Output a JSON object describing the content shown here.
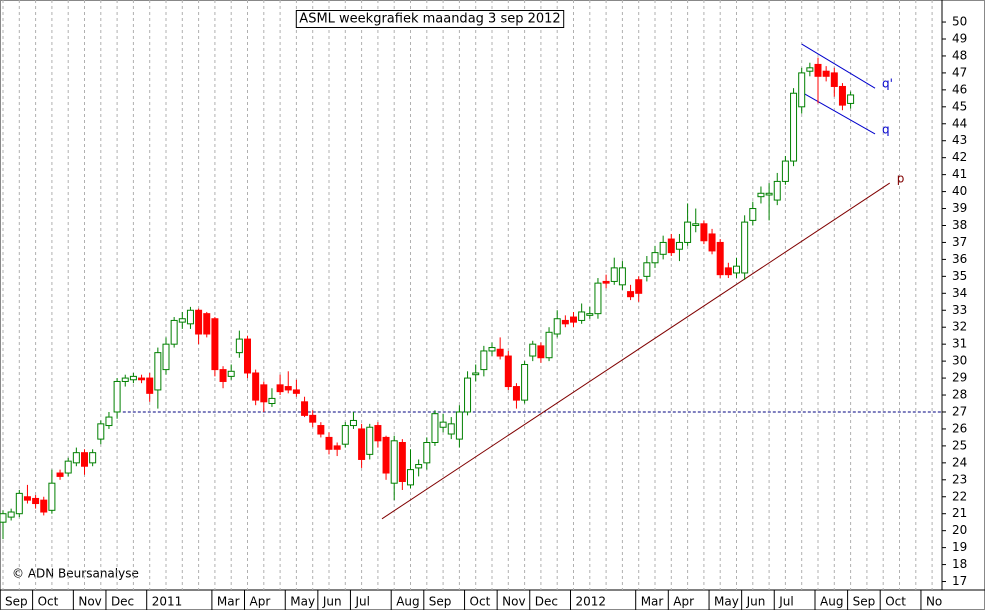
{
  "chart_data": {
    "type": "candlestick",
    "title": "ASML weekgrafiek maandag 3 sep 2012",
    "footer": "© ADN Beursanalyse",
    "categories": [
      "Sep",
      null,
      null,
      null,
      "Oct",
      null,
      null,
      null,
      null,
      "Nov",
      null,
      null,
      null,
      "Dec",
      null,
      null,
      null,
      null,
      "2011",
      null,
      null,
      null,
      null,
      null,
      null,
      null,
      "Mar",
      null,
      null,
      null,
      "Apr",
      null,
      null,
      null,
      null,
      "May",
      null,
      null,
      null,
      "Jun",
      null,
      null,
      null,
      "Jul",
      null,
      null,
      null,
      null,
      "Aug",
      null,
      null,
      null,
      "Sep",
      null,
      null,
      null,
      null,
      "Oct",
      null,
      null,
      null,
      "Nov",
      null,
      null,
      null,
      "Dec",
      null,
      null,
      null,
      null,
      "2012",
      null,
      null,
      null,
      null,
      null,
      null,
      null,
      "Mar",
      null,
      null,
      null,
      "Apr",
      null,
      null,
      null,
      null,
      "May",
      null,
      null,
      null,
      "Jun",
      null,
      null,
      null,
      "Jul",
      null,
      null,
      null,
      null,
      "Aug",
      null,
      null,
      null,
      "Sep",
      null,
      null,
      null,
      "Oct",
      null,
      null,
      null,
      null,
      "No",
      null,
      null
    ],
    "open": [
      20.5,
      20.8,
      21.0,
      22.0,
      21.9,
      21.8,
      21.2,
      23.4,
      23.4,
      24.0,
      24.6,
      24.0,
      25.4,
      26.2,
      27.0,
      28.8,
      28.9,
      29.0,
      29.0,
      28.3,
      29.5,
      31.0,
      32.3,
      32.2,
      33.0,
      32.8,
      32.5,
      29.5,
      29.1,
      30.5,
      31.3,
      29.3,
      28.6,
      27.5,
      28.6,
      28.5,
      28.3,
      27.6,
      26.8,
      26.2,
      25.5,
      25.0,
      25.1,
      26.2,
      26.0,
      24.5,
      26.2,
      25.5,
      22.8,
      25.2,
      22.7,
      23.7,
      24.0,
      25.2,
      26.1,
      25.7,
      25.4,
      27.0,
      29.2,
      29.5,
      30.6,
      30.7,
      30.3,
      28.5,
      27.7,
      30.3,
      30.9,
      30.2,
      31.6,
      32.4,
      32.6,
      32.4,
      32.7,
      32.8,
      34.7,
      34.7,
      34.5,
      34.1,
      34.8,
      35.0,
      35.8,
      36.3,
      37.2,
      36.6,
      37.0,
      38.0,
      38.1,
      37.5,
      37.0,
      35.5,
      35.2,
      35.2,
      38.3,
      39.7,
      39.8,
      39.5,
      40.6,
      41.8,
      45.0,
      47.1,
      47.5,
      47.1,
      47.0,
      46.2,
      45.2,
      null,
      null,
      null,
      null,
      null,
      null,
      null,
      null,
      null,
      null,
      null
    ],
    "high": [
      21.2,
      21.3,
      22.4,
      22.7,
      22.1,
      22.0,
      23.6,
      23.6,
      24.3,
      24.9,
      24.8,
      24.8,
      26.5,
      27.0,
      29.0,
      29.2,
      29.3,
      29.2,
      29.3,
      30.8,
      31.4,
      32.6,
      32.9,
      33.2,
      33.1,
      32.9,
      32.6,
      29.7,
      29.8,
      31.8,
      31.5,
      29.5,
      28.8,
      28.4,
      29.2,
      29.4,
      28.9,
      27.9,
      27.1,
      26.4,
      25.8,
      25.2,
      26.4,
      27.0,
      26.3,
      26.3,
      26.4,
      25.6,
      25.6,
      25.4,
      24.8,
      24.2,
      25.5,
      27.1,
      26.9,
      26.7,
      27.4,
      29.4,
      29.8,
      30.9,
      31.1,
      31.4,
      30.6,
      28.7,
      30.0,
      31.2,
      31.1,
      32.0,
      33.0,
      32.7,
      32.9,
      33.4,
      33.2,
      34.9,
      35.1,
      36.1,
      35.9,
      34.5,
      35.0,
      36.2,
      36.8,
      37.4,
      37.5,
      37.5,
      39.3,
      39.0,
      38.3,
      37.8,
      37.2,
      35.8,
      36.1,
      38.6,
      39.4,
      40.3,
      40.5,
      41.1,
      42.1,
      46.1,
      47.3,
      47.6,
      47.9,
      47.4,
      47.3,
      46.4,
      45.9,
      null,
      null,
      null,
      null,
      null,
      null,
      null,
      null,
      null,
      null,
      null
    ],
    "low": [
      19.5,
      20.6,
      20.8,
      21.6,
      21.3,
      20.9,
      21.0,
      23.0,
      23.2,
      23.8,
      23.3,
      23.8,
      25.1,
      26.0,
      26.6,
      28.5,
      28.7,
      28.7,
      27.6,
      27.2,
      29.2,
      30.8,
      31.9,
      31.9,
      31.0,
      31.4,
      29.1,
      28.4,
      28.9,
      30.2,
      29.0,
      27.4,
      27.0,
      27.3,
      28.0,
      28.1,
      27.9,
      26.7,
      26.1,
      25.5,
      24.5,
      24.4,
      24.9,
      26.0,
      23.7,
      24.2,
      24.9,
      23.0,
      21.8,
      22.4,
      22.5,
      23.2,
      23.6,
      25.0,
      25.8,
      25.4,
      24.9,
      26.8,
      28.8,
      29.1,
      30.3,
      30.1,
      28.3,
      27.2,
      27.5,
      30.0,
      29.9,
      30.0,
      31.4,
      32.0,
      32.0,
      32.2,
      32.5,
      32.5,
      34.3,
      34.5,
      34.2,
      33.6,
      33.5,
      34.7,
      35.5,
      36.0,
      36.2,
      35.9,
      36.8,
      37.6,
      36.9,
      36.3,
      34.9,
      34.9,
      34.9,
      34.8,
      38.0,
      39.3,
      38.3,
      39.2,
      40.4,
      41.5,
      44.6,
      46.8,
      45.2,
      46.5,
      45.6,
      44.8,
      44.9,
      null,
      null,
      null,
      null,
      null,
      null,
      null,
      null,
      null,
      null,
      null
    ],
    "close": [
      21.0,
      21.1,
      22.2,
      21.8,
      21.6,
      21.1,
      22.8,
      23.2,
      24.1,
      24.6,
      23.8,
      24.6,
      26.3,
      26.7,
      28.8,
      29.0,
      29.1,
      28.9,
      28.1,
      30.5,
      31.0,
      32.4,
      32.5,
      33.0,
      31.6,
      31.6,
      29.5,
      28.8,
      29.4,
      31.3,
      29.3,
      27.7,
      27.6,
      27.8,
      28.2,
      28.3,
      28.1,
      26.8,
      26.4,
      25.7,
      24.8,
      24.8,
      26.2,
      26.5,
      24.2,
      26.1,
      25.3,
      23.4,
      25.3,
      22.9,
      23.6,
      23.9,
      25.2,
      26.9,
      26.4,
      26.3,
      27.0,
      29.0,
      29.3,
      30.6,
      30.8,
      30.3,
      28.5,
      27.7,
      29.8,
      31.0,
      30.2,
      31.7,
      32.5,
      32.2,
      32.3,
      32.9,
      32.8,
      34.6,
      34.6,
      35.5,
      35.5,
      33.8,
      34.0,
      35.8,
      36.4,
      37.0,
      36.4,
      37.0,
      38.2,
      38.1,
      37.1,
      36.5,
      35.1,
      35.1,
      35.6,
      38.2,
      39.0,
      39.9,
      39.9,
      40.6,
      41.8,
      45.8,
      47.0,
      47.3,
      46.8,
      46.8,
      46.2,
      45.1,
      45.7,
      null,
      null,
      null,
      null,
      null,
      null,
      null,
      null,
      null,
      null,
      null
    ],
    "up_color": "#008000",
    "down_color": "#ff0000",
    "ylim": [
      16.5,
      51.3
    ],
    "yticks": [
      17,
      18,
      19,
      20,
      21,
      22,
      23,
      24,
      25,
      26,
      27,
      28,
      29,
      30,
      31,
      32,
      33,
      34,
      35,
      36,
      37,
      38,
      39,
      40,
      41,
      42,
      43,
      44,
      45,
      46,
      47,
      48,
      49,
      50
    ],
    "hlines": [
      {
        "value": 27,
        "x": [
          14.7,
          115.2
        ],
        "color": "#000080"
      }
    ],
    "trendlines": [
      {
        "label": "p",
        "x": [
          46.5,
          108.8
        ],
        "y": [
          20.7,
          40.5
        ],
        "color": "#800000"
      },
      {
        "label": "q'",
        "x": [
          98.0,
          107.0
        ],
        "y": [
          48.7,
          46.1
        ],
        "color": "#0000cc"
      },
      {
        "label": "q",
        "x": [
          98.2,
          107.0
        ],
        "y": [
          45.8,
          43.4
        ],
        "color": "#0000cc"
      }
    ]
  }
}
